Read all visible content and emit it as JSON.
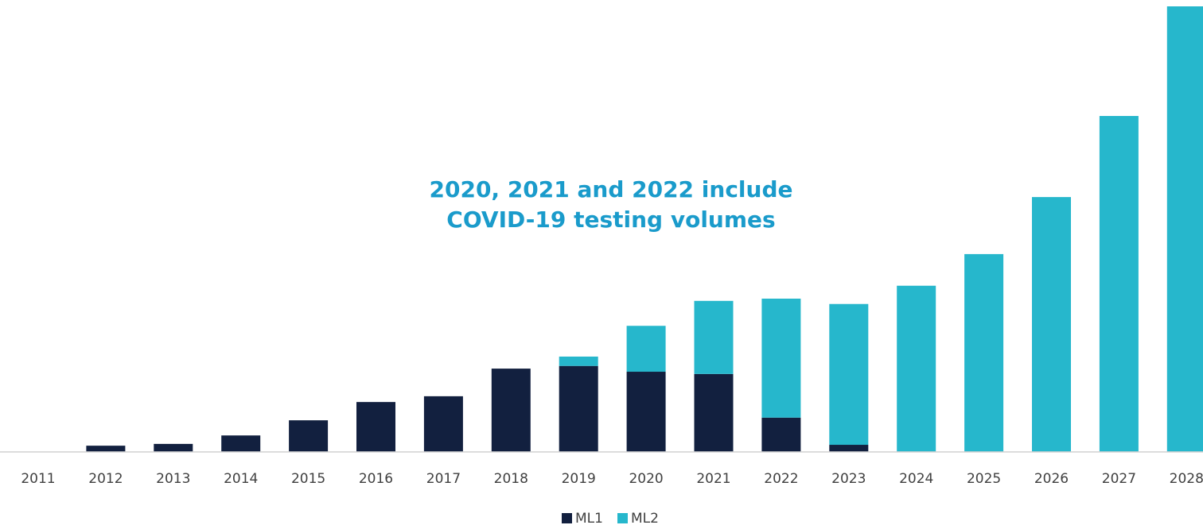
{
  "chart_data": {
    "type": "stacked_bar",
    "annotation": [
      "2020, 2021 and 2022 include",
      "COVID-19 testing volumes"
    ],
    "categories": [
      "2011",
      "2012",
      "2013",
      "2014",
      "2015",
      "2016",
      "2017",
      "2018",
      "2019",
      "2020",
      "2021",
      "2022",
      "2023",
      "2024",
      "2025",
      "2026",
      "2027",
      "2028"
    ],
    "series": [
      {
        "name": "ML1",
        "color": "#12203f",
        "values": [
          0,
          1.4,
          1.8,
          3.7,
          7.1,
          11.2,
          12.5,
          18.7,
          19.3,
          18.0,
          17.5,
          7.7,
          1.6,
          0,
          0,
          0,
          0,
          0
        ]
      },
      {
        "name": "ML2",
        "color": "#26b7cc",
        "values": [
          0,
          0,
          0,
          0,
          0,
          0,
          0,
          0,
          2.1,
          10.3,
          16.4,
          26.7,
          31.6,
          37.3,
          44.4,
          57.2,
          75.4,
          100
        ]
      }
    ],
    "ylim": [
      0,
      100
    ],
    "legend": "bottom"
  }
}
